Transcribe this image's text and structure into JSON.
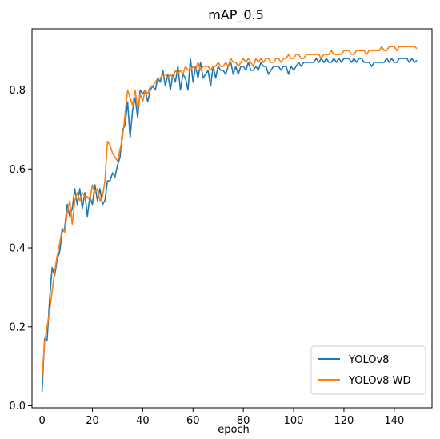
{
  "chart_data": {
    "type": "line",
    "title": "mAP_0.5",
    "xlabel": "epoch",
    "ylabel": "",
    "xlim": [
      -4,
      155
    ],
    "ylim": [
      -0.005,
      0.955
    ],
    "xticks": [
      0,
      20,
      40,
      60,
      80,
      100,
      120,
      140
    ],
    "yticks": [
      0.0,
      0.2,
      0.4,
      0.6,
      0.8
    ],
    "ytick_labels": [
      "0.0",
      "0.2",
      "0.4",
      "0.6",
      "0.8"
    ],
    "grid": false,
    "legend_position": "lower-right",
    "series": [
      {
        "name": "YOLOv8",
        "color": "#1f77b4",
        "values": [
          0.035,
          0.17,
          0.165,
          0.27,
          0.35,
          0.33,
          0.37,
          0.39,
          0.44,
          0.45,
          0.51,
          0.48,
          0.5,
          0.55,
          0.51,
          0.55,
          0.5,
          0.54,
          0.48,
          0.53,
          0.51,
          0.56,
          0.52,
          0.55,
          0.51,
          0.52,
          0.57,
          0.57,
          0.59,
          0.58,
          0.61,
          0.63,
          0.7,
          0.71,
          0.77,
          0.68,
          0.75,
          0.78,
          0.73,
          0.8,
          0.79,
          0.8,
          0.77,
          0.8,
          0.81,
          0.8,
          0.83,
          0.82,
          0.85,
          0.81,
          0.84,
          0.8,
          0.84,
          0.82,
          0.86,
          0.8,
          0.84,
          0.83,
          0.8,
          0.88,
          0.82,
          0.86,
          0.83,
          0.87,
          0.83,
          0.84,
          0.85,
          0.81,
          0.86,
          0.83,
          0.86,
          0.85,
          0.85,
          0.84,
          0.86,
          0.87,
          0.84,
          0.86,
          0.84,
          0.86,
          0.86,
          0.85,
          0.87,
          0.85,
          0.85,
          0.86,
          0.85,
          0.87,
          0.86,
          0.86,
          0.84,
          0.85,
          0.86,
          0.86,
          0.86,
          0.85,
          0.86,
          0.86,
          0.84,
          0.86,
          0.85,
          0.86,
          0.87,
          0.86,
          0.87,
          0.87,
          0.87,
          0.87,
          0.87,
          0.88,
          0.87,
          0.88,
          0.87,
          0.88,
          0.87,
          0.87,
          0.88,
          0.87,
          0.88,
          0.87,
          0.88,
          0.88,
          0.88,
          0.87,
          0.88,
          0.87,
          0.88,
          0.88,
          0.87,
          0.87,
          0.87,
          0.86,
          0.87,
          0.87,
          0.87,
          0.87,
          0.87,
          0.88,
          0.87,
          0.88,
          0.87,
          0.87,
          0.88,
          0.88,
          0.88,
          0.88,
          0.87,
          0.88,
          0.87,
          0.875
        ]
      },
      {
        "name": "YOLOv8-WD",
        "color": "#ff7f0e",
        "values": [
          0.07,
          0.16,
          0.2,
          0.24,
          0.29,
          0.34,
          0.38,
          0.41,
          0.45,
          0.44,
          0.49,
          0.52,
          0.46,
          0.52,
          0.54,
          0.52,
          0.54,
          0.53,
          0.53,
          0.52,
          0.56,
          0.54,
          0.55,
          0.52,
          0.53,
          0.57,
          0.67,
          0.66,
          0.64,
          0.63,
          0.62,
          0.65,
          0.68,
          0.74,
          0.8,
          0.78,
          0.76,
          0.8,
          0.75,
          0.79,
          0.77,
          0.8,
          0.79,
          0.81,
          0.81,
          0.82,
          0.83,
          0.83,
          0.84,
          0.84,
          0.83,
          0.84,
          0.83,
          0.85,
          0.84,
          0.85,
          0.84,
          0.86,
          0.85,
          0.85,
          0.86,
          0.85,
          0.87,
          0.85,
          0.86,
          0.86,
          0.86,
          0.85,
          0.86,
          0.86,
          0.87,
          0.86,
          0.86,
          0.87,
          0.86,
          0.88,
          0.87,
          0.87,
          0.86,
          0.87,
          0.88,
          0.87,
          0.88,
          0.87,
          0.86,
          0.88,
          0.87,
          0.88,
          0.87,
          0.88,
          0.88,
          0.87,
          0.87,
          0.88,
          0.88,
          0.87,
          0.88,
          0.88,
          0.89,
          0.88,
          0.88,
          0.89,
          0.89,
          0.88,
          0.88,
          0.89,
          0.89,
          0.89,
          0.89,
          0.89,
          0.89,
          0.88,
          0.89,
          0.89,
          0.89,
          0.9,
          0.89,
          0.89,
          0.89,
          0.89,
          0.9,
          0.9,
          0.9,
          0.89,
          0.89,
          0.9,
          0.9,
          0.9,
          0.9,
          0.89,
          0.9,
          0.9,
          0.9,
          0.9,
          0.9,
          0.91,
          0.9,
          0.9,
          0.91,
          0.91,
          0.91,
          0.9,
          0.91,
          0.91,
          0.91,
          0.91,
          0.91,
          0.91,
          0.91,
          0.905
        ]
      }
    ]
  }
}
